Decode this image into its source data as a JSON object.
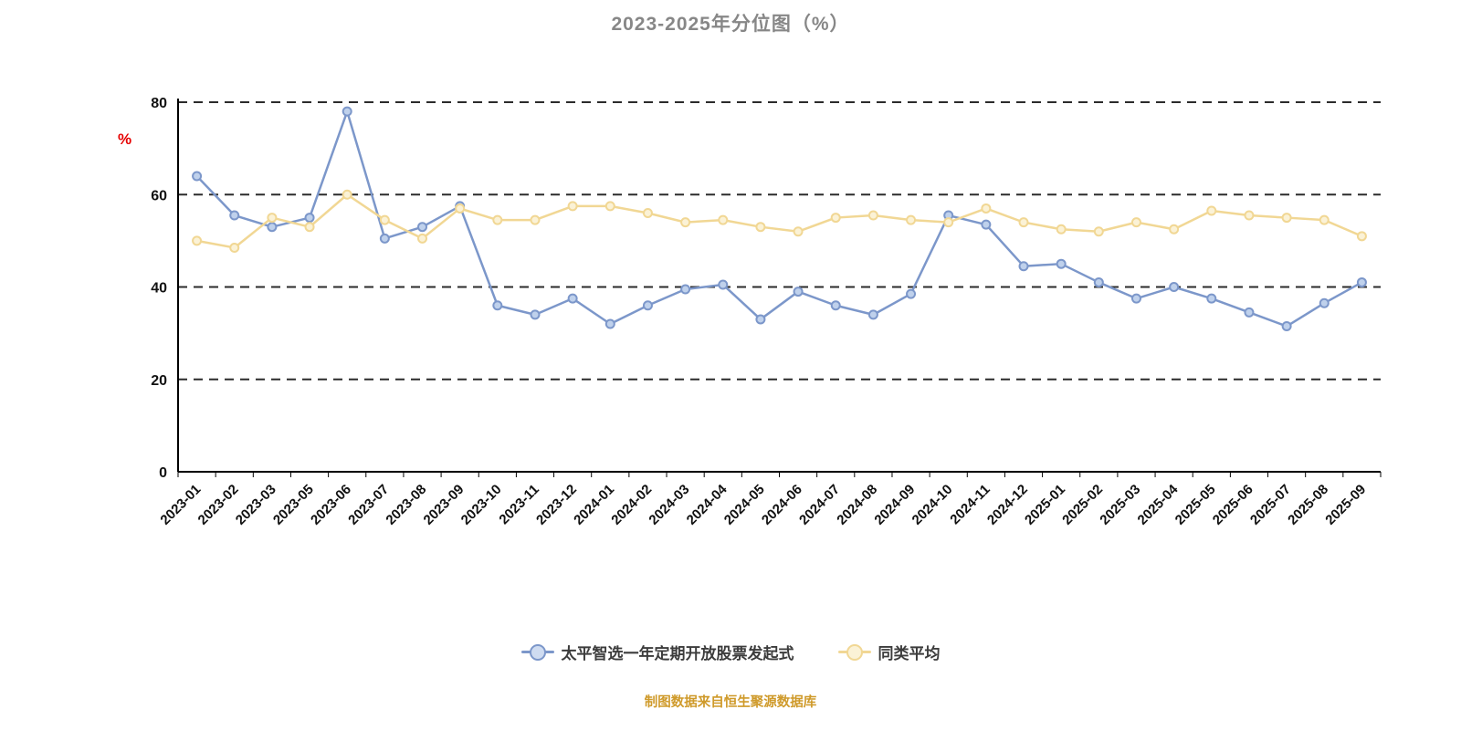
{
  "title": "2023-2025年分位图（%）",
  "y_axis_unit": "%",
  "source_note": "制图数据来自恒生聚源数据库",
  "colors": {
    "title": "#878787",
    "unit": "#e60000",
    "source": "#cf9a2a",
    "grid": "#2b2b2b",
    "axis": "#000000",
    "fund_line": "#7c97ca",
    "fund_marker_fill": "#bfd1ec",
    "avg_line": "#f1d794",
    "avg_marker_fill": "#fbf2d6"
  },
  "legend": {
    "items": [
      {
        "label": "太平智选一年定期开放股票发起式"
      },
      {
        "label": "同类平均"
      }
    ]
  },
  "chart_data": {
    "type": "line",
    "title": "2023-2025年分位图（%）",
    "xlabel": "",
    "ylabel": "%",
    "ylim": [
      0,
      80
    ],
    "yticks": [
      0,
      20,
      40,
      60,
      80
    ],
    "grid": "dashed-horizontal",
    "legend_position": "bottom",
    "x": [
      "2023-01",
      "2023-02",
      "2023-03",
      "2023-05",
      "2023-06",
      "2023-07",
      "2023-08",
      "2023-09",
      "2023-10",
      "2023-11",
      "2023-12",
      "2024-01",
      "2024-02",
      "2024-03",
      "2024-04",
      "2024-05",
      "2024-06",
      "2024-07",
      "2024-08",
      "2024-09",
      "2024-10",
      "2024-11",
      "2024-12",
      "2025-01",
      "2025-02",
      "2025-03",
      "2025-04",
      "2025-05",
      "2025-06",
      "2025-07",
      "2025-08",
      "2025-09"
    ],
    "series": [
      {
        "name": "太平智选一年定期开放股票发起式",
        "color": "#7c97ca",
        "marker_fill": "#bfd1ec",
        "values": [
          64,
          55.5,
          53,
          55,
          78,
          50.5,
          53,
          57.5,
          36,
          34,
          37.5,
          32,
          36,
          39.5,
          40.5,
          33,
          39,
          36,
          34,
          38.5,
          55.5,
          53.5,
          44.5,
          45,
          41,
          37.5,
          40,
          37.5,
          34.5,
          31.5,
          36.5,
          41
        ]
      },
      {
        "name": "同类平均",
        "color": "#f1d794",
        "marker_fill": "#fbf2d6",
        "values": [
          50,
          48.5,
          55,
          53,
          60,
          54.5,
          50.5,
          57,
          54.5,
          54.5,
          57.5,
          57.5,
          56,
          54,
          54.5,
          53,
          52,
          55,
          55.5,
          54.5,
          54,
          57,
          54,
          52.5,
          52,
          54,
          52.5,
          56.5,
          55.5,
          55,
          54.5,
          51
        ]
      }
    ]
  }
}
